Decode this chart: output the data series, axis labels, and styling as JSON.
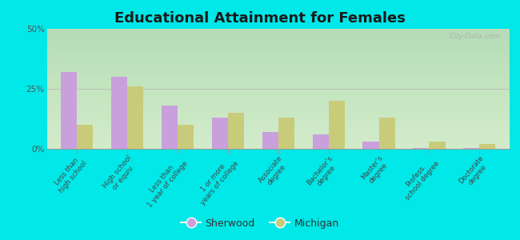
{
  "title": "Educational Attainment for Females",
  "categories": [
    "Less than\nhigh school",
    "High school\nor equiv.",
    "Less than\n1 year of college",
    "1 or more\nyears of college",
    "Associate\ndegree",
    "Bachelor's\ndegree",
    "Master's\ndegree",
    "Profess.\nschool degree",
    "Doctorate\ndegree"
  ],
  "sherwood_values": [
    32,
    30,
    18,
    13,
    7,
    6,
    3,
    0.3,
    0.3
  ],
  "michigan_values": [
    10,
    26,
    10,
    15,
    13,
    20,
    13,
    3,
    2
  ],
  "sherwood_color": "#c9a0dc",
  "michigan_color": "#c8cc7a",
  "ylim": [
    0,
    50
  ],
  "yticks": [
    0,
    25,
    50
  ],
  "ytick_labels": [
    "0%",
    "25%",
    "50%"
  ],
  "plot_bg_top": "#e8f5e0",
  "plot_bg_bottom": "#f5fdf0",
  "outer_bg": "#00e8e8",
  "title_fontsize": 13,
  "watermark": "City-Data.com",
  "legend_labels": [
    "Sherwood",
    "Michigan"
  ]
}
